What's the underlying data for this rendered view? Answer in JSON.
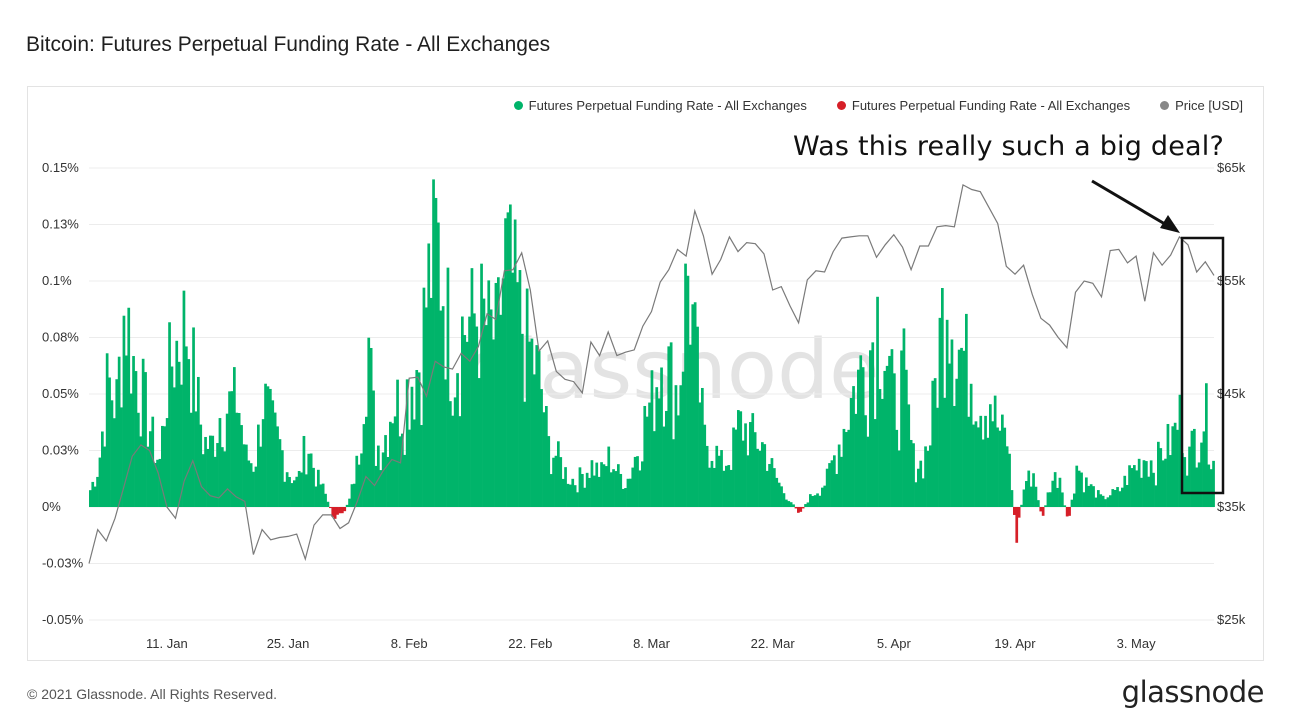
{
  "header": {
    "title": "Bitcoin: Futures Perpetual Funding Rate - All Exchanges"
  },
  "footer": {
    "copyright": "© 2021 Glassnode. All Rights Reserved.",
    "logo_text": "glassnode"
  },
  "watermark": "glassnode",
  "annotation": {
    "text": "Was this really such a big deal?"
  },
  "colors": {
    "positive": "#00b46a",
    "negative": "#d61f28",
    "price": "#7a7a7a",
    "annotation": "#111111"
  },
  "chart_data": {
    "type": "area",
    "legend": [
      {
        "label": "Futures Perpetual Funding Rate - All Exchanges",
        "color": "#00b46a"
      },
      {
        "label": "Futures Perpetual Funding Rate - All Exchanges",
        "color": "#d61f28"
      },
      {
        "label": "Price [USD]",
        "color": "#888888"
      }
    ],
    "legend_position": "top-right",
    "grid": true,
    "x_ticks": [
      "11. Jan",
      "25. Jan",
      "8. Feb",
      "22. Feb",
      "8. Mar",
      "22. Mar",
      "5. Apr",
      "19. Apr",
      "3. May"
    ],
    "y_left": {
      "ticks": [
        "0.15%",
        "0.13%",
        "0.1%",
        "0.08%",
        "0.05%",
        "0.03%",
        "0%",
        "-0.03%",
        "-0.05%"
      ],
      "ylim": [
        -0.05,
        0.15
      ],
      "unit": "%"
    },
    "y_right": {
      "ticks": [
        "$65k",
        "$55k",
        "$45k",
        "$35k",
        "$25k"
      ],
      "ylim": [
        25000,
        65000
      ],
      "unit": "USD"
    },
    "date_range": [
      "2021-01-02",
      "2021-05-12"
    ],
    "series": [
      {
        "name": "Futures Perpetual Funding Rate - All Exchanges",
        "axis": "left",
        "points": [
          [
            "2021-01-02",
            0.01
          ],
          [
            "2021-01-03",
            0.025
          ],
          [
            "2021-01-04",
            0.075
          ],
          [
            "2021-01-05",
            0.06
          ],
          [
            "2021-01-06",
            0.12
          ],
          [
            "2021-01-07",
            0.085
          ],
          [
            "2021-01-08",
            0.07
          ],
          [
            "2021-01-09",
            0.045
          ],
          [
            "2021-01-10",
            0.025
          ],
          [
            "2021-01-11",
            0.08
          ],
          [
            "2021-01-12",
            0.095
          ],
          [
            "2021-01-13",
            0.11
          ],
          [
            "2021-01-14",
            0.08
          ],
          [
            "2021-01-15",
            0.04
          ],
          [
            "2021-01-16",
            0.035
          ],
          [
            "2021-01-17",
            0.055
          ],
          [
            "2021-01-18",
            0.06
          ],
          [
            "2021-01-19",
            0.065
          ],
          [
            "2021-01-20",
            0.03
          ],
          [
            "2021-01-21",
            0.025
          ],
          [
            "2021-01-22",
            0.065
          ],
          [
            "2021-01-23",
            0.05
          ],
          [
            "2021-01-24",
            0.035
          ],
          [
            "2021-01-25",
            0.02
          ],
          [
            "2021-01-26",
            0.015
          ],
          [
            "2021-01-27",
            0.04
          ],
          [
            "2021-01-28",
            0.02
          ],
          [
            "2021-01-29",
            0.01
          ],
          [
            "2021-01-30",
            -0.005
          ],
          [
            "2021-01-31",
            -0.007
          ],
          [
            "2021-02-01",
            0.005
          ],
          [
            "2021-02-02",
            0.03
          ],
          [
            "2021-02-03",
            0.11
          ],
          [
            "2021-02-04",
            0.035
          ],
          [
            "2021-02-05",
            0.04
          ],
          [
            "2021-02-06",
            0.065
          ],
          [
            "2021-02-07",
            0.06
          ],
          [
            "2021-02-08",
            0.075
          ],
          [
            "2021-02-09",
            0.085
          ],
          [
            "2021-02-10",
            0.13
          ],
          [
            "2021-02-11",
            0.16
          ],
          [
            "2021-02-12",
            0.125
          ],
          [
            "2021-02-13",
            0.085
          ],
          [
            "2021-02-14",
            0.105
          ],
          [
            "2021-02-15",
            0.11
          ],
          [
            "2021-02-16",
            0.115
          ],
          [
            "2021-02-17",
            0.105
          ],
          [
            "2021-02-18",
            0.1
          ],
          [
            "2021-02-19",
            0.15
          ],
          [
            "2021-02-20",
            0.13
          ],
          [
            "2021-02-21",
            0.105
          ],
          [
            "2021-02-22",
            0.09
          ],
          [
            "2021-02-23",
            0.075
          ],
          [
            "2021-02-24",
            0.035
          ],
          [
            "2021-02-25",
            0.03
          ],
          [
            "2021-02-26",
            0.02
          ],
          [
            "2021-02-27",
            0.015
          ],
          [
            "2021-02-28",
            0.02
          ],
          [
            "2021-03-01",
            0.025
          ],
          [
            "2021-03-02",
            0.02
          ],
          [
            "2021-03-03",
            0.03
          ],
          [
            "2021-03-04",
            0.02
          ],
          [
            "2021-03-05",
            0.015
          ],
          [
            "2021-03-06",
            0.03
          ],
          [
            "2021-03-07",
            0.05
          ],
          [
            "2021-03-08",
            0.065
          ],
          [
            "2021-03-09",
            0.09
          ],
          [
            "2021-03-10",
            0.08
          ],
          [
            "2021-03-11",
            0.065
          ],
          [
            "2021-03-12",
            0.14
          ],
          [
            "2021-03-13",
            0.09
          ],
          [
            "2021-03-14",
            0.04
          ],
          [
            "2021-03-15",
            0.035
          ],
          [
            "2021-03-16",
            0.025
          ],
          [
            "2021-03-17",
            0.03
          ],
          [
            "2021-03-18",
            0.05
          ],
          [
            "2021-03-19",
            0.045
          ],
          [
            "2021-03-20",
            0.04
          ],
          [
            "2021-03-21",
            0.035
          ],
          [
            "2021-03-22",
            0.02
          ],
          [
            "2021-03-23",
            0.01
          ],
          [
            "2021-03-24",
            0.003
          ],
          [
            "2021-03-25",
            -0.004
          ],
          [
            "2021-03-26",
            0.005
          ],
          [
            "2021-03-27",
            0.01
          ],
          [
            "2021-03-28",
            0.015
          ],
          [
            "2021-03-29",
            0.03
          ],
          [
            "2021-03-30",
            0.045
          ],
          [
            "2021-03-31",
            0.065
          ],
          [
            "2021-04-01",
            0.08
          ],
          [
            "2021-04-02",
            0.09
          ],
          [
            "2021-04-03",
            0.115
          ],
          [
            "2021-04-04",
            0.09
          ],
          [
            "2021-04-05",
            0.06
          ],
          [
            "2021-04-06",
            0.08
          ],
          [
            "2021-04-07",
            0.03
          ],
          [
            "2021-04-08",
            0.025
          ],
          [
            "2021-04-09",
            0.04
          ],
          [
            "2021-04-10",
            0.09
          ],
          [
            "2021-04-11",
            0.14
          ],
          [
            "2021-04-12",
            0.095
          ],
          [
            "2021-04-13",
            0.09
          ],
          [
            "2021-04-14",
            0.08
          ],
          [
            "2021-04-15",
            0.06
          ],
          [
            "2021-04-16",
            0.065
          ],
          [
            "2021-04-17",
            0.045
          ],
          [
            "2021-04-18",
            0.04
          ],
          [
            "2021-04-19",
            -0.02
          ],
          [
            "2021-04-20",
            0.015
          ],
          [
            "2021-04-21",
            0.02
          ],
          [
            "2021-04-22",
            -0.007
          ],
          [
            "2021-04-23",
            0.015
          ],
          [
            "2021-04-24",
            0.02
          ],
          [
            "2021-04-25",
            -0.01
          ],
          [
            "2021-04-26",
            0.025
          ],
          [
            "2021-04-27",
            0.015
          ],
          [
            "2021-04-28",
            0.01
          ],
          [
            "2021-04-29",
            0.005
          ],
          [
            "2021-04-30",
            0.008
          ],
          [
            "2021-05-01",
            0.01
          ],
          [
            "2021-05-02",
            0.02
          ],
          [
            "2021-05-03",
            0.025
          ],
          [
            "2021-05-04",
            0.03
          ],
          [
            "2021-05-05",
            0.025
          ],
          [
            "2021-05-06",
            0.035
          ],
          [
            "2021-05-07",
            0.04
          ],
          [
            "2021-05-08",
            0.055
          ],
          [
            "2021-05-09",
            0.03
          ],
          [
            "2021-05-10",
            0.05
          ],
          [
            "2021-05-11",
            0.055
          ],
          [
            "2021-05-12",
            0.03
          ]
        ]
      },
      {
        "name": "Price [USD]",
        "axis": "right",
        "points": [
          [
            "2021-01-02",
            30000
          ],
          [
            "2021-01-03",
            33000
          ],
          [
            "2021-01-04",
            32000
          ],
          [
            "2021-01-05",
            34000
          ],
          [
            "2021-01-06",
            36700
          ],
          [
            "2021-01-07",
            39500
          ],
          [
            "2021-01-08",
            40500
          ],
          [
            "2021-01-09",
            40000
          ],
          [
            "2021-01-10",
            38000
          ],
          [
            "2021-01-11",
            35000
          ],
          [
            "2021-01-12",
            34000
          ],
          [
            "2021-01-13",
            37300
          ],
          [
            "2021-01-14",
            39100
          ],
          [
            "2021-01-15",
            36800
          ],
          [
            "2021-01-16",
            36000
          ],
          [
            "2021-01-17",
            35800
          ],
          [
            "2021-01-18",
            36600
          ],
          [
            "2021-01-19",
            35900
          ],
          [
            "2021-01-20",
            35500
          ],
          [
            "2021-01-21",
            30800
          ],
          [
            "2021-01-22",
            33000
          ],
          [
            "2021-01-23",
            32100
          ],
          [
            "2021-01-24",
            32300
          ],
          [
            "2021-01-25",
            32400
          ],
          [
            "2021-01-26",
            32600
          ],
          [
            "2021-01-27",
            30400
          ],
          [
            "2021-01-28",
            33400
          ],
          [
            "2021-01-29",
            34300
          ],
          [
            "2021-01-30",
            34300
          ],
          [
            "2021-01-31",
            33100
          ],
          [
            "2021-02-01",
            33600
          ],
          [
            "2021-02-02",
            35500
          ],
          [
            "2021-02-03",
            37700
          ],
          [
            "2021-02-04",
            36900
          ],
          [
            "2021-02-05",
            38200
          ],
          [
            "2021-02-06",
            39200
          ],
          [
            "2021-02-07",
            38900
          ],
          [
            "2021-02-08",
            46400
          ],
          [
            "2021-02-09",
            46500
          ],
          [
            "2021-02-10",
            44800
          ],
          [
            "2021-02-11",
            47900
          ],
          [
            "2021-02-12",
            47400
          ],
          [
            "2021-02-13",
            47200
          ],
          [
            "2021-02-14",
            48600
          ],
          [
            "2021-02-15",
            47900
          ],
          [
            "2021-02-16",
            49200
          ],
          [
            "2021-02-17",
            52100
          ],
          [
            "2021-02-18",
            51600
          ],
          [
            "2021-02-19",
            55900
          ],
          [
            "2021-02-20",
            56000
          ],
          [
            "2021-02-21",
            57500
          ],
          [
            "2021-02-22",
            54200
          ],
          [
            "2021-02-23",
            48800
          ],
          [
            "2021-02-24",
            49700
          ],
          [
            "2021-02-25",
            47000
          ],
          [
            "2021-02-26",
            46300
          ],
          [
            "2021-02-27",
            46100
          ],
          [
            "2021-02-28",
            45100
          ],
          [
            "2021-03-01",
            49600
          ],
          [
            "2021-03-02",
            48400
          ],
          [
            "2021-03-03",
            50500
          ],
          [
            "2021-03-04",
            48400
          ],
          [
            "2021-03-05",
            48700
          ],
          [
            "2021-03-06",
            48900
          ],
          [
            "2021-03-07",
            51000
          ],
          [
            "2021-03-08",
            52300
          ],
          [
            "2021-03-09",
            54900
          ],
          [
            "2021-03-10",
            56000
          ],
          [
            "2021-03-11",
            57800
          ],
          [
            "2021-03-12",
            57200
          ],
          [
            "2021-03-13",
            61200
          ],
          [
            "2021-03-14",
            59000
          ],
          [
            "2021-03-15",
            55600
          ],
          [
            "2021-03-16",
            56900
          ],
          [
            "2021-03-17",
            58900
          ],
          [
            "2021-03-18",
            57600
          ],
          [
            "2021-03-19",
            58400
          ],
          [
            "2021-03-20",
            58300
          ],
          [
            "2021-03-21",
            57400
          ],
          [
            "2021-03-22",
            54200
          ],
          [
            "2021-03-23",
            54500
          ],
          [
            "2021-03-24",
            52800
          ],
          [
            "2021-03-25",
            51300
          ],
          [
            "2021-03-26",
            55100
          ],
          [
            "2021-03-27",
            55900
          ],
          [
            "2021-03-28",
            55800
          ],
          [
            "2021-03-29",
            57600
          ],
          [
            "2021-03-30",
            58800
          ],
          [
            "2021-03-31",
            58900
          ],
          [
            "2021-04-01",
            59000
          ],
          [
            "2021-04-02",
            59000
          ],
          [
            "2021-04-03",
            57100
          ],
          [
            "2021-04-04",
            58200
          ],
          [
            "2021-04-05",
            59100
          ],
          [
            "2021-04-06",
            58000
          ],
          [
            "2021-04-07",
            56000
          ],
          [
            "2021-04-08",
            58100
          ],
          [
            "2021-04-09",
            58100
          ],
          [
            "2021-04-10",
            59800
          ],
          [
            "2021-04-11",
            59900
          ],
          [
            "2021-04-12",
            59800
          ],
          [
            "2021-04-13",
            63500
          ],
          [
            "2021-04-14",
            63100
          ],
          [
            "2021-04-15",
            62900
          ],
          [
            "2021-04-16",
            61500
          ],
          [
            "2021-04-17",
            60100
          ],
          [
            "2021-04-18",
            56300
          ],
          [
            "2021-04-19",
            55600
          ],
          [
            "2021-04-20",
            56400
          ],
          [
            "2021-04-21",
            53800
          ],
          [
            "2021-04-22",
            51700
          ],
          [
            "2021-04-23",
            51100
          ],
          [
            "2021-04-24",
            50000
          ],
          [
            "2021-04-25",
            49100
          ],
          [
            "2021-04-26",
            54000
          ],
          [
            "2021-04-27",
            55000
          ],
          [
            "2021-04-28",
            54800
          ],
          [
            "2021-04-29",
            53600
          ],
          [
            "2021-04-30",
            57700
          ],
          [
            "2021-05-01",
            57800
          ],
          [
            "2021-05-02",
            56600
          ],
          [
            "2021-05-03",
            57200
          ],
          [
            "2021-05-04",
            53200
          ],
          [
            "2021-05-05",
            57500
          ],
          [
            "2021-05-06",
            56400
          ],
          [
            "2021-05-07",
            57300
          ],
          [
            "2021-05-08",
            58900
          ],
          [
            "2021-05-09",
            58200
          ],
          [
            "2021-05-10",
            55800
          ],
          [
            "2021-05-11",
            56700
          ],
          [
            "2021-05-12",
            55500
          ]
        ]
      }
    ]
  }
}
